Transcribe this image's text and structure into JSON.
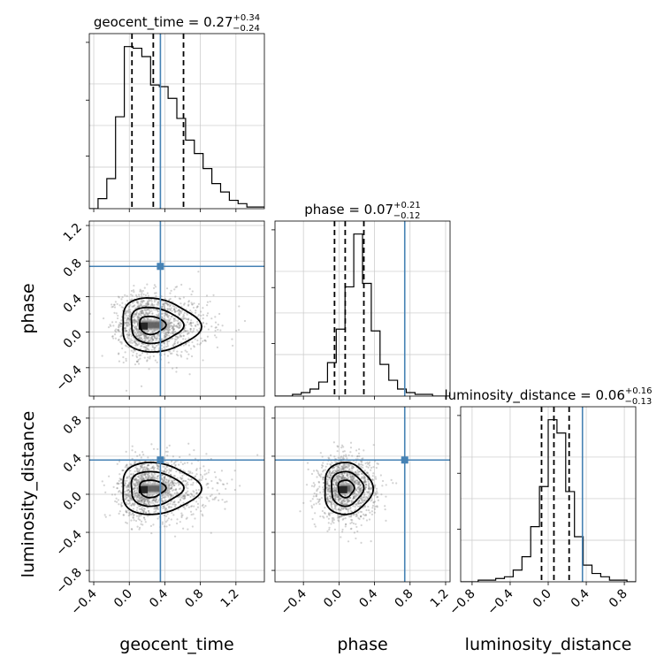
{
  "chart_data": {
    "type": "corner",
    "parameters": [
      "geocent_time",
      "phase",
      "luminosity_distance"
    ],
    "axis_labels": [
      "geocent_time",
      "phase",
      "luminosity_distance"
    ],
    "truths": [
      0.35,
      0.74,
      0.36
    ],
    "colors": {
      "truth": "#4682b4",
      "hist": "#000000",
      "grid": "#c8c8c8",
      "scatter": "#808080"
    },
    "ranges": [
      [
        -0.45,
        1.52
      ],
      [
        -0.72,
        1.25
      ],
      [
        -0.92,
        0.92
      ]
    ],
    "ticks": [
      [
        -0.4,
        0.0,
        0.4,
        0.8,
        1.2
      ],
      [
        -0.4,
        0.0,
        0.4,
        0.8,
        1.2
      ],
      [
        -0.8,
        -0.4,
        0.0,
        0.4,
        0.8
      ]
    ],
    "tick_labels": [
      [
        "−0.4",
        "0.0",
        "0.4",
        "0.8",
        "1.2"
      ],
      [
        "−0.4",
        "0.0",
        "0.4",
        "0.8",
        "1.2"
      ],
      [
        "−0.8",
        "−0.4",
        "0.0",
        "0.4",
        "0.8"
      ]
    ],
    "titles": [
      {
        "prefix": "geocent_time = 0.27",
        "sup": "+0.34",
        "sub": "−0.24"
      },
      {
        "prefix": "phase = 0.07",
        "sup": "+0.21",
        "sub": "−0.12"
      },
      {
        "prefix": "luminosity_distance = 0.06",
        "sup": "+0.16",
        "sub": "−0.13"
      }
    ],
    "quantiles": [
      [
        0.03,
        0.27,
        0.61
      ],
      [
        -0.05,
        0.07,
        0.28
      ],
      [
        -0.07,
        0.06,
        0.22
      ]
    ],
    "histograms": [
      {
        "edges_start": -0.45,
        "bin_width": 0.0985,
        "counts": [
          0,
          6,
          18,
          55,
          97,
          96,
          91,
          74,
          73,
          66,
          54,
          41,
          33,
          24,
          15,
          10,
          5,
          3,
          1,
          1
        ]
      },
      {
        "edges_start": -0.72,
        "bin_width": 0.0985,
        "counts": [
          0,
          0,
          1,
          2,
          4,
          8,
          19,
          38,
          62,
          92,
          64,
          37,
          18,
          9,
          4,
          2,
          1,
          1,
          0,
          0
        ]
      },
      {
        "edges_start": -0.92,
        "bin_width": 0.092,
        "counts": [
          0,
          0,
          1,
          1,
          2,
          3,
          7,
          15,
          33,
          57,
          97,
          89,
          54,
          27,
          10,
          5,
          3,
          1,
          1,
          0
        ]
      }
    ],
    "contours_2d": [
      {
        "x_param": 0,
        "y_param": 1,
        "center": [
          0.22,
          0.08
        ],
        "spread": [
          0.25,
          0.2
        ],
        "rho": -0.05,
        "skew": 0.5
      },
      {
        "x_param": 0,
        "y_param": 2,
        "center": [
          0.22,
          0.06
        ],
        "spread": [
          0.25,
          0.18
        ],
        "rho": 0.0,
        "skew": 0.5
      },
      {
        "x_param": 1,
        "y_param": 2,
        "center": [
          0.07,
          0.06
        ],
        "spread": [
          0.17,
          0.18
        ],
        "rho": 0.0,
        "skew": 0.15
      }
    ]
  }
}
